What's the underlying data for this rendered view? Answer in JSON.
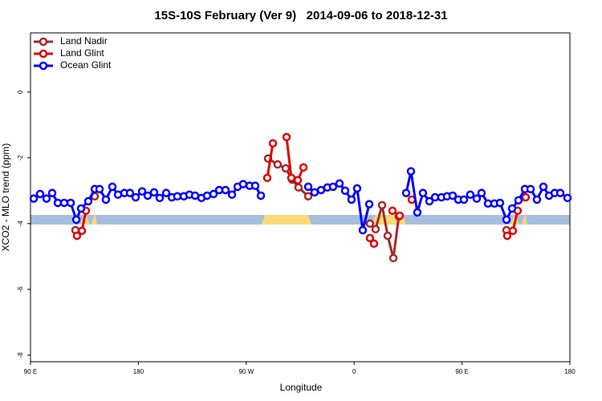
{
  "chart_data": {
    "type": "line",
    "title": "15S-10S February (Ver 9)   2014-09-06 to 2018-12-31",
    "x_label": "Longitude",
    "y_label": "XCO2 - MLO trend (ppm)",
    "xlim": [
      90,
      540
    ],
    "ylim": [
      -8.2,
      1.8
    ],
    "xticks": [
      {
        "value": 90,
        "label": "90 E"
      },
      180,
      {
        "value": 270,
        "label": "90 W"
      },
      {
        "value": 360,
        "label": "0"
      },
      {
        "value": 450,
        "label": "90 E"
      },
      {
        "value": 540,
        "label": "180"
      }
    ],
    "yticks": [
      0,
      -2,
      -4,
      -6,
      -8
    ],
    "legend": "top-left",
    "series": [
      {
        "name": "Land Nadir",
        "color": "#a52a2a",
        "x": [
          127.5,
          130,
          143.6,
          200,
          288.2,
          296.2,
          302.9,
          308.3,
          313.6,
          321.7,
          340,
          373.2,
          377.9,
          383.3,
          388.0,
          392.7,
          397.3,
          450,
          487.1,
          500,
          502.5
        ],
        "values": [
          -4.2,
          null,
          -3.17,
          null,
          -2.02,
          -2.2,
          -2.32,
          -2.66,
          -2.9,
          -3.17,
          null,
          -4.0,
          -4.17,
          -3.44,
          -4.37,
          -5.05,
          -3.78,
          null,
          -4.2,
          null,
          -3.2
        ]
      },
      {
        "name": "Land Glint",
        "color": "#e00000",
        "x": [
          128.8,
          132.9,
          136.2,
          140,
          287.5,
          292.2,
          300,
          303.6,
          307.6,
          313.0,
          317.7,
          340,
          373.2,
          376.6,
          380,
          392.0,
          398.0,
          405,
          408.1,
          420,
          487.7,
          492.4,
          496.4,
          500,
          503.1
        ],
        "values": [
          -4.37,
          -4.22,
          -3.61,
          null,
          -2.61,
          -1.56,
          null,
          -1.37,
          -2.61,
          -2.68,
          -2.29,
          null,
          -4.44,
          -4.61,
          null,
          -3.61,
          -3.76,
          null,
          -3.27,
          null,
          -4.37,
          -4.22,
          -3.61,
          null,
          -3.2
        ]
      },
      {
        "name": "Ocean Glint",
        "color": "#0000ff",
        "x": [
          92.7,
          98.0,
          103.4,
          108.1,
          112.8,
          118.1,
          123.5,
          128.2,
          132.2,
          138.2,
          143.6,
          147.6,
          152.9,
          158.3,
          163.0,
          168.3,
          173.0,
          177.7,
          183.1,
          187.8,
          193.1,
          197.8,
          203.2,
          207.9,
          212.5,
          217.9,
          222.6,
          227.3,
          232.6,
          237.3,
          242.7,
          247.4,
          252.7,
          258.1,
          262.8,
          267.4,
          272.8,
          277.5,
          282.2,
          300,
          321.7,
          327.0,
          332.4,
          337.7,
          342.4,
          347.8,
          352.5,
          357.8,
          362.5,
          367.2,
          372.6,
          385,
          403.4,
          407.4,
          412.7,
          417.4,
          422.8,
          427.5,
          432.8,
          437.5,
          442.2,
          446.9,
          451.6,
          456.9,
          462.3,
          466.3,
          471.7,
          477.0,
          481.7,
          487.1,
          491.8,
          497.1,
          502.5,
          507.2,
          512.5,
          517.9,
          522.6,
          527.3,
          532.0,
          538.0
        ],
        "values": [
          -3.24,
          -3.1,
          -3.24,
          -3.07,
          -3.37,
          -3.37,
          -3.37,
          -3.88,
          -3.54,
          -3.32,
          -2.95,
          -2.95,
          -3.27,
          -2.88,
          -3.12,
          -3.07,
          -3.07,
          -3.2,
          -3.02,
          -3.15,
          -3.05,
          -3.22,
          -3.07,
          -3.2,
          -3.17,
          -3.17,
          -3.12,
          -3.15,
          -3.22,
          -3.15,
          -3.1,
          -2.98,
          -2.98,
          -3.12,
          -2.88,
          -2.8,
          -2.85,
          -2.85,
          -3.15,
          null,
          -2.88,
          -3.05,
          -2.98,
          -2.9,
          -2.88,
          -2.78,
          -3.0,
          -3.27,
          -2.93,
          -4.2,
          -3.41,
          null,
          -3.07,
          -2.41,
          -3.66,
          -3.07,
          -3.32,
          -3.2,
          -3.2,
          -3.17,
          -3.15,
          -3.27,
          -3.27,
          -3.12,
          -3.24,
          -3.07,
          -3.39,
          -3.39,
          -3.37,
          -3.88,
          -3.54,
          -3.29,
          -2.95,
          -2.95,
          -3.27,
          -2.88,
          -3.15,
          -3.07,
          -3.07,
          -3.22
        ]
      }
    ]
  }
}
